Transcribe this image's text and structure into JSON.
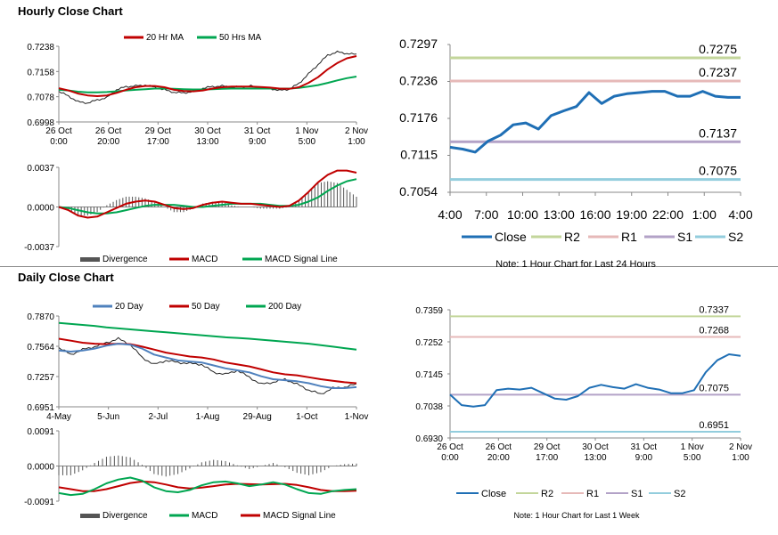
{
  "titles": {
    "hourly": "Hourly Close Chart",
    "daily": "Daily Close Chart"
  },
  "colors": {
    "ma_short": "#c00000",
    "ma_long": "#00a651",
    "ma_200": "#00a651",
    "ma_20_daily": "#4f81bd",
    "close": "#1f6fb5",
    "r2": "#c3d69b",
    "r1": "#e6b9b8",
    "s1": "#b3a2c7",
    "s2": "#93cddd",
    "divergence": "#555555"
  },
  "chart_data": [
    {
      "id": "hourly_price",
      "type": "line",
      "legend": [
        "20 Hr MA",
        "50 Hrs MA"
      ],
      "y_ticks": [
        "0.7238",
        "0.7158",
        "0.7078",
        "0.6998"
      ],
      "ylim": [
        0.6998,
        0.7238
      ],
      "x_ticks": [
        [
          "26 Oct",
          "0:00"
        ],
        [
          "26 Oct",
          "20:00"
        ],
        [
          "29 Oct",
          "17:00"
        ],
        [
          "30 Oct",
          "13:00"
        ],
        [
          "31 Oct",
          "9:00"
        ],
        [
          "1 Nov",
          "5:00"
        ],
        [
          "2 Nov",
          "1:00"
        ]
      ],
      "close": [
        0.7095,
        0.708,
        0.7062,
        0.7058,
        0.7068,
        0.7075,
        0.71,
        0.711,
        0.7112,
        0.7115,
        0.7108,
        0.71,
        0.7092,
        0.709,
        0.7095,
        0.7105,
        0.711,
        0.7112,
        0.7108,
        0.711,
        0.7112,
        0.7106,
        0.7104,
        0.7098,
        0.7102,
        0.712,
        0.715,
        0.718,
        0.721,
        0.722,
        0.7215,
        0.7212
      ],
      "ma20": [
        0.7105,
        0.7098,
        0.7088,
        0.7082,
        0.708,
        0.7082,
        0.709,
        0.71,
        0.7108,
        0.7112,
        0.7112,
        0.7108,
        0.71,
        0.7096,
        0.7095,
        0.7098,
        0.7104,
        0.7108,
        0.711,
        0.711,
        0.711,
        0.7109,
        0.7107,
        0.7104,
        0.7103,
        0.7108,
        0.7122,
        0.714,
        0.7165,
        0.7185,
        0.72,
        0.7207
      ],
      "ma50": [
        0.71,
        0.7098,
        0.7094,
        0.7092,
        0.7092,
        0.7093,
        0.7095,
        0.7098,
        0.71,
        0.7102,
        0.7104,
        0.7104,
        0.7103,
        0.7102,
        0.7101,
        0.7101,
        0.7102,
        0.7103,
        0.7104,
        0.7104,
        0.7104,
        0.7104,
        0.7104,
        0.7104,
        0.7104,
        0.7106,
        0.711,
        0.7115,
        0.7122,
        0.713,
        0.7137,
        0.7142
      ]
    },
    {
      "id": "hourly_macd",
      "type": "line",
      "y_ticks": [
        "0.0037",
        "0.0000",
        "-0.0037"
      ],
      "ylim": [
        -0.0037,
        0.0037
      ],
      "legend": [
        "Divergence",
        "MACD",
        "MACD Signal Line"
      ],
      "macd": [
        0.0,
        -0.0003,
        -0.0008,
        -0.001,
        -0.0009,
        -0.0005,
        -0.0001,
        0.0003,
        0.0005,
        0.0006,
        0.0005,
        0.0002,
        -0.0001,
        -0.0002,
        -0.0001,
        0.0002,
        0.0004,
        0.0005,
        0.0004,
        0.0003,
        0.0003,
        0.0002,
        0.0001,
        0.0,
        0.0001,
        0.0006,
        0.0014,
        0.0023,
        0.003,
        0.0034,
        0.0034,
        0.0032
      ],
      "signal": [
        0.0,
        -0.0001,
        -0.0003,
        -0.0005,
        -0.0006,
        -0.0006,
        -0.0005,
        -0.0003,
        -0.0001,
        0.0001,
        0.0002,
        0.0002,
        0.0002,
        0.0001,
        0.0,
        0.0,
        0.0001,
        0.0002,
        0.0003,
        0.0003,
        0.0003,
        0.0003,
        0.0002,
        0.0001,
        0.0001,
        0.0002,
        0.0005,
        0.0009,
        0.0015,
        0.002,
        0.0024,
        0.0026
      ]
    },
    {
      "id": "hourly_24h",
      "type": "line",
      "y_ticks": [
        "0.7297",
        "0.7236",
        "0.7176",
        "0.7115",
        "0.7054"
      ],
      "ylim": [
        0.7054,
        0.7297
      ],
      "x_ticks": [
        "4:00",
        "7:00",
        "10:00",
        "13:00",
        "16:00",
        "19:00",
        "22:00",
        "1:00",
        "4:00"
      ],
      "levels": [
        {
          "name": "R2",
          "value": 0.7275,
          "label": "0.7275"
        },
        {
          "name": "R1",
          "value": 0.7237,
          "label": "0.7237"
        },
        {
          "name": "S1",
          "value": 0.7137,
          "label": "0.7137"
        },
        {
          "name": "S2",
          "value": 0.7075,
          "label": "0.7075"
        }
      ],
      "close": [
        0.7128,
        0.7125,
        0.712,
        0.7138,
        0.7148,
        0.7165,
        0.7168,
        0.7158,
        0.718,
        0.7188,
        0.7195,
        0.7218,
        0.72,
        0.7212,
        0.7216,
        0.7218,
        0.722,
        0.722,
        0.7212,
        0.7212,
        0.722,
        0.7212,
        0.721,
        0.721
      ],
      "legend": [
        "Close",
        "R2",
        "R1",
        "S1",
        "S2"
      ],
      "note": "Note: 1 Hour Chart for Last 24 Hours"
    },
    {
      "id": "daily_price",
      "type": "line",
      "legend": [
        "20 Day",
        "50 Day",
        "200 Day"
      ],
      "y_ticks": [
        "0.7870",
        "0.7564",
        "0.7257",
        "0.6951"
      ],
      "ylim": [
        0.6951,
        0.787
      ],
      "x_ticks": [
        "4-May",
        "5-Jun",
        "2-Jul",
        "1-Aug",
        "29-Aug",
        "1-Oct",
        "1-Nov"
      ],
      "close": [
        0.755,
        0.748,
        0.753,
        0.756,
        0.76,
        0.764,
        0.758,
        0.745,
        0.738,
        0.742,
        0.74,
        0.739,
        0.738,
        0.73,
        0.728,
        0.732,
        0.725,
        0.718,
        0.72,
        0.723,
        0.718,
        0.712,
        0.708,
        0.714,
        0.715,
        0.718
      ],
      "ma20": [
        0.752,
        0.751,
        0.752,
        0.754,
        0.757,
        0.759,
        0.758,
        0.754,
        0.748,
        0.745,
        0.742,
        0.741,
        0.74,
        0.737,
        0.734,
        0.732,
        0.73,
        0.726,
        0.723,
        0.722,
        0.721,
        0.719,
        0.716,
        0.714,
        0.714,
        0.715
      ],
      "ma50": [
        0.764,
        0.762,
        0.76,
        0.759,
        0.7585,
        0.759,
        0.7585,
        0.756,
        0.753,
        0.75,
        0.748,
        0.746,
        0.745,
        0.743,
        0.74,
        0.738,
        0.736,
        0.733,
        0.73,
        0.728,
        0.727,
        0.725,
        0.723,
        0.7215,
        0.72,
        0.719
      ],
      "ma200": [
        0.78,
        0.779,
        0.778,
        0.777,
        0.7755,
        0.7745,
        0.7735,
        0.7725,
        0.7715,
        0.7705,
        0.7695,
        0.7685,
        0.7675,
        0.7665,
        0.7655,
        0.7648,
        0.764,
        0.763,
        0.762,
        0.761,
        0.76,
        0.759,
        0.7575,
        0.756,
        0.7545,
        0.753
      ]
    },
    {
      "id": "daily_macd",
      "type": "line",
      "y_ticks": [
        "0.0091",
        "0.0000",
        "-0.0091"
      ],
      "ylim": [
        -0.0091,
        0.0091
      ],
      "legend": [
        "Divergence",
        "MACD",
        "MACD Signal Line"
      ],
      "macd": [
        -0.007,
        -0.0075,
        -0.0072,
        -0.006,
        -0.0045,
        -0.0035,
        -0.003,
        -0.0038,
        -0.0055,
        -0.0065,
        -0.0068,
        -0.0062,
        -0.005,
        -0.0042,
        -0.004,
        -0.0045,
        -0.0052,
        -0.0048,
        -0.0042,
        -0.0048,
        -0.006,
        -0.007,
        -0.0072,
        -0.0065,
        -0.0062,
        -0.006
      ],
      "signal": [
        -0.0055,
        -0.006,
        -0.0065,
        -0.0065,
        -0.006,
        -0.0052,
        -0.0044,
        -0.004,
        -0.0042,
        -0.0048,
        -0.0055,
        -0.0058,
        -0.0056,
        -0.0052,
        -0.0048,
        -0.0046,
        -0.0047,
        -0.0048,
        -0.0047,
        -0.0046,
        -0.0049,
        -0.0055,
        -0.0062,
        -0.0065,
        -0.0065,
        -0.0064
      ]
    },
    {
      "id": "weekly_hourly",
      "type": "line",
      "y_ticks": [
        "0.7359",
        "0.7252",
        "0.7145",
        "0.7038",
        "0.6930"
      ],
      "ylim": [
        0.693,
        0.7359
      ],
      "x_ticks": [
        [
          "26 Oct",
          "0:00"
        ],
        [
          "26 Oct",
          "20:00"
        ],
        [
          "29 Oct",
          "17:00"
        ],
        [
          "30 Oct",
          "13:00"
        ],
        [
          "31 Oct",
          "9:00"
        ],
        [
          "1 Nov",
          "5:00"
        ],
        [
          "2 Nov",
          "1:00"
        ]
      ],
      "levels": [
        {
          "name": "R2",
          "value": 0.7337,
          "label": "0.7337"
        },
        {
          "name": "R1",
          "value": 0.7268,
          "label": "0.7268"
        },
        {
          "name": "S1",
          "value": 0.7075,
          "label": "0.7075"
        },
        {
          "name": "S2",
          "value": 0.6951,
          "label": "0.6951"
        }
      ],
      "close": [
        0.7075,
        0.704,
        0.7035,
        0.704,
        0.709,
        0.7095,
        0.7092,
        0.7098,
        0.708,
        0.7062,
        0.7058,
        0.707,
        0.7098,
        0.7108,
        0.71,
        0.7095,
        0.711,
        0.7098,
        0.7092,
        0.708,
        0.708,
        0.709,
        0.715,
        0.719,
        0.721,
        0.7205
      ],
      "legend": [
        "Close",
        "R2",
        "R1",
        "S1",
        "S2"
      ],
      "note": "Note: 1 Hour Chart for Last 1 Week"
    }
  ]
}
